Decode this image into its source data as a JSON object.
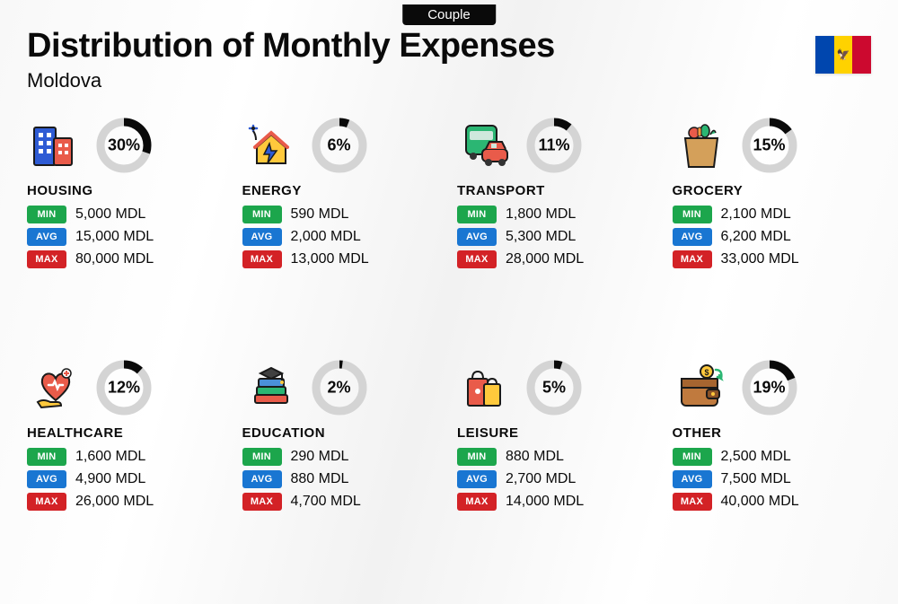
{
  "badge": "Couple",
  "title": "Distribution of Monthly Expenses",
  "subtitle": "Moldova",
  "currency": "MDL",
  "flag": {
    "colors": [
      "#0046ae",
      "#ffd200",
      "#cc092f"
    ],
    "emblem": "🦅"
  },
  "labels": {
    "min": "MIN",
    "avg": "AVG",
    "max": "MAX"
  },
  "tag_colors": {
    "min": "#1ca64c",
    "avg": "#1976d2",
    "max": "#d32226"
  },
  "donut": {
    "bg_color": "#d4d4d4",
    "fg_color": "#0a0a0a",
    "stroke_width": 9,
    "radius": 26
  },
  "title_fontsize": 38,
  "subtitle_fontsize": 22,
  "background_color": "#f8f8f8",
  "categories": [
    {
      "key": "housing",
      "name": "HOUSING",
      "percent": 30,
      "min": "5,000",
      "avg": "15,000",
      "max": "80,000",
      "icon": "buildings",
      "colors": [
        "#2e5bd4",
        "#e95b4a",
        "#ffc93c"
      ]
    },
    {
      "key": "energy",
      "name": "ENERGY",
      "percent": 6,
      "min": "590",
      "avg": "2,000",
      "max": "13,000",
      "icon": "house-energy",
      "colors": [
        "#ffc93c",
        "#e95b4a",
        "#2e5bd4"
      ]
    },
    {
      "key": "transport",
      "name": "TRANSPORT",
      "percent": 11,
      "min": "1,800",
      "avg": "5,300",
      "max": "28,000",
      "icon": "bus-car",
      "colors": [
        "#2bb673",
        "#e95b4a",
        "#ffc93c"
      ]
    },
    {
      "key": "grocery",
      "name": "GROCERY",
      "percent": 15,
      "min": "2,100",
      "avg": "6,200",
      "max": "33,000",
      "icon": "grocery-bag",
      "colors": [
        "#d4a05a",
        "#2bb673",
        "#e95b4a"
      ]
    },
    {
      "key": "healthcare",
      "name": "HEALTHCARE",
      "percent": 12,
      "min": "1,600",
      "avg": "4,900",
      "max": "26,000",
      "icon": "heart-hand",
      "colors": [
        "#e95b4a",
        "#ffc93c",
        "#2bb673"
      ]
    },
    {
      "key": "education",
      "name": "EDUCATION",
      "percent": 2,
      "min": "290",
      "avg": "880",
      "max": "4,700",
      "icon": "books-cap",
      "colors": [
        "#404040",
        "#2bb673",
        "#e95b4a"
      ]
    },
    {
      "key": "leisure",
      "name": "LEISURE",
      "percent": 5,
      "min": "880",
      "avg": "2,700",
      "max": "14,000",
      "icon": "shopping-bags",
      "colors": [
        "#e95b4a",
        "#ffc93c",
        "#404040"
      ]
    },
    {
      "key": "other",
      "name": "OTHER",
      "percent": 19,
      "min": "2,500",
      "avg": "7,500",
      "max": "40,000",
      "icon": "wallet",
      "colors": [
        "#c07a3e",
        "#2bb673",
        "#ffc93c"
      ]
    }
  ]
}
